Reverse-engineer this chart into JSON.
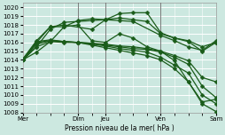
{
  "background_color": "#cce8e0",
  "grid_color": "#ffffff",
  "line_color": "#1a5c1a",
  "xlabel": "Pression niveau de la mer( hPa )",
  "ylim": [
    1008,
    1020.5
  ],
  "ytick_min": 1008,
  "ytick_max": 1020,
  "xtick_labels": [
    "Mer",
    "",
    "Dim",
    "Jeu",
    "",
    "Ven",
    "",
    "Sam"
  ],
  "xtick_positions": [
    0,
    1,
    2,
    3,
    4,
    5,
    6,
    7
  ],
  "vlines": [
    2,
    3,
    5,
    7
  ],
  "series": [
    {
      "x": [
        0,
        0.5,
        1.0,
        1.5,
        2.0,
        2.5,
        3.0,
        3.5,
        4.0,
        4.5,
        5.0,
        5.5,
        6.0,
        6.5,
        7.0
      ],
      "y": [
        1014.0,
        1015.5,
        1016.1,
        1016.0,
        1016.0,
        1015.9,
        1015.8,
        1015.6,
        1015.5,
        1015.3,
        1015.0,
        1014.5,
        1013.9,
        1012.0,
        1011.5
      ]
    },
    {
      "x": [
        0,
        0.5,
        1.0,
        1.5,
        2.0,
        2.5,
        3.0,
        3.5,
        4.0,
        4.5,
        5.0,
        5.5,
        6.0,
        6.5,
        7.0
      ],
      "y": [
        1014.0,
        1015.8,
        1016.2,
        1016.1,
        1016.0,
        1015.9,
        1015.7,
        1015.5,
        1015.3,
        1015.2,
        1014.9,
        1014.3,
        1013.5,
        1011.0,
        1009.7
      ]
    },
    {
      "x": [
        0,
        0.5,
        1.0,
        1.5,
        2.0,
        2.5,
        3.0,
        3.5,
        4.0,
        4.5,
        5.0,
        5.5,
        6.0,
        6.5,
        7.0
      ],
      "y": [
        1014.0,
        1016.0,
        1016.2,
        1016.1,
        1016.0,
        1015.8,
        1015.6,
        1015.3,
        1015.1,
        1014.9,
        1014.3,
        1013.4,
        1012.5,
        1010.0,
        1009.0
      ]
    },
    {
      "x": [
        0,
        0.5,
        1.0,
        1.5,
        2.0,
        2.5,
        3.0,
        3.5,
        4.0,
        4.5,
        5.0,
        5.5,
        6.0,
        6.5,
        7.0
      ],
      "y": [
        1014.0,
        1016.1,
        1016.3,
        1016.1,
        1016.0,
        1015.7,
        1015.4,
        1015.1,
        1014.8,
        1014.5,
        1014.0,
        1013.0,
        1011.5,
        1009.0,
        1008.1
      ]
    },
    {
      "x": [
        0,
        0.5,
        1.0,
        1.5,
        2.5,
        3.0,
        3.5,
        4.0,
        4.5,
        5.0,
        5.5,
        6.0,
        6.5,
        7.0
      ],
      "y": [
        1014.1,
        1016.2,
        1017.8,
        1018.0,
        1017.5,
        1018.6,
        1018.8,
        1018.6,
        1018.4,
        1017.0,
        1016.5,
        1016.2,
        1015.5,
        1016.0
      ]
    },
    {
      "x": [
        0,
        0.5,
        1.0,
        1.5,
        2.0,
        2.5,
        3.0,
        3.5,
        4.0,
        4.5,
        5.0,
        5.5,
        6.0,
        6.5,
        7.0
      ],
      "y": [
        1014.0,
        1016.0,
        1017.8,
        1017.8,
        1018.5,
        1018.7,
        1018.6,
        1019.3,
        1019.4,
        1019.4,
        1017.1,
        1016.5,
        1016.1,
        1015.0,
        1016.0
      ]
    },
    {
      "x": [
        0,
        0.5,
        1.0,
        1.5,
        2.0,
        2.5,
        3.0,
        3.5,
        4.0,
        5.0,
        5.5,
        6.0,
        6.5,
        7.0
      ],
      "y": [
        1014.0,
        1015.5,
        1017.5,
        1018.3,
        1018.4,
        1018.5,
        1018.6,
        1018.5,
        1018.4,
        1016.8,
        1016.2,
        1015.5,
        1015.1,
        1016.2
      ]
    },
    {
      "x": [
        0,
        0.5,
        1.0,
        1.5,
        2.0,
        2.5,
        3.0,
        3.5,
        4.0,
        4.5,
        5.0,
        5.5,
        6.0,
        6.5,
        7.0
      ],
      "y": [
        1014.0,
        1014.9,
        1016.1,
        1017.8,
        1018.0,
        1016.2,
        1016.0,
        1017.0,
        1016.5,
        1015.5,
        1015.0,
        1013.9,
        1011.5,
        1009.2,
        1009.5
      ]
    }
  ],
  "marker": "D",
  "markersize": 2.5,
  "linewidth": 0.9
}
